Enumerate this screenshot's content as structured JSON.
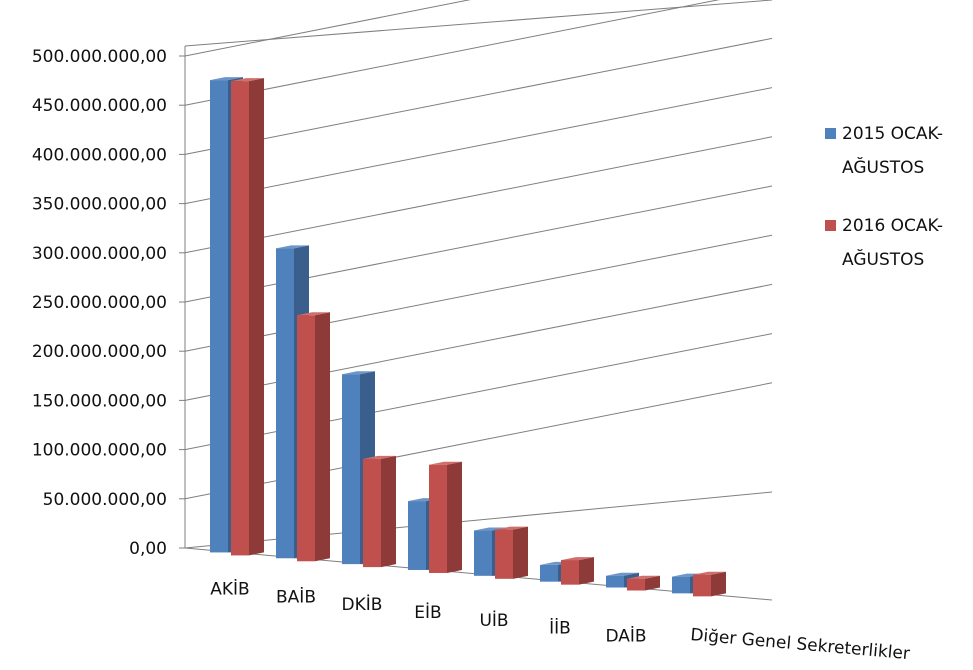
{
  "chart_data": {
    "type": "bar",
    "title": "",
    "xlabel": "",
    "ylabel": "",
    "ylim": [
      0,
      500000000
    ],
    "y_tick_labels": [
      "0,00",
      "50.000.000,00",
      "100.000.000,00",
      "150.000.000,00",
      "200.000.000,00",
      "250.000.000,00",
      "300.000.000,00",
      "350.000.000,00",
      "400.000.000,00",
      "450.000.000,00",
      "500.000.000,00"
    ],
    "categories": [
      "AKİB",
      "BAİB",
      "DKİB",
      "EİB",
      "UİB",
      "İİB",
      "DAİB",
      "Diğer Genel Sekreterlikler"
    ],
    "series": [
      {
        "name": "2015 OCAK-AĞUSTOS",
        "values": [
          480000000,
          315000000,
          193000000,
          70000000,
          46000000,
          17000000,
          12000000,
          17000000
        ]
      },
      {
        "name": "2016 OCAK-AĞUSTOS",
        "values": [
          482000000,
          250000000,
          110000000,
          110000000,
          50000000,
          25000000,
          12000000,
          22000000
        ]
      }
    ],
    "legend_position": "right",
    "grid": true,
    "colors": {
      "s0_front": "#4F81BD",
      "s0_side": "#3A5F8C",
      "s0_top": "#6E95C8",
      "s1_front": "#C0504D",
      "s1_side": "#8E3A38",
      "s1_top": "#CF6F6C",
      "grid": "#7F7F7F"
    }
  },
  "legend": {
    "items": [
      {
        "line1": "2015 OCAK-",
        "line2": "AĞUSTOS"
      },
      {
        "line1": "2016 OCAK-",
        "line2": "AĞUSTOS"
      }
    ]
  }
}
